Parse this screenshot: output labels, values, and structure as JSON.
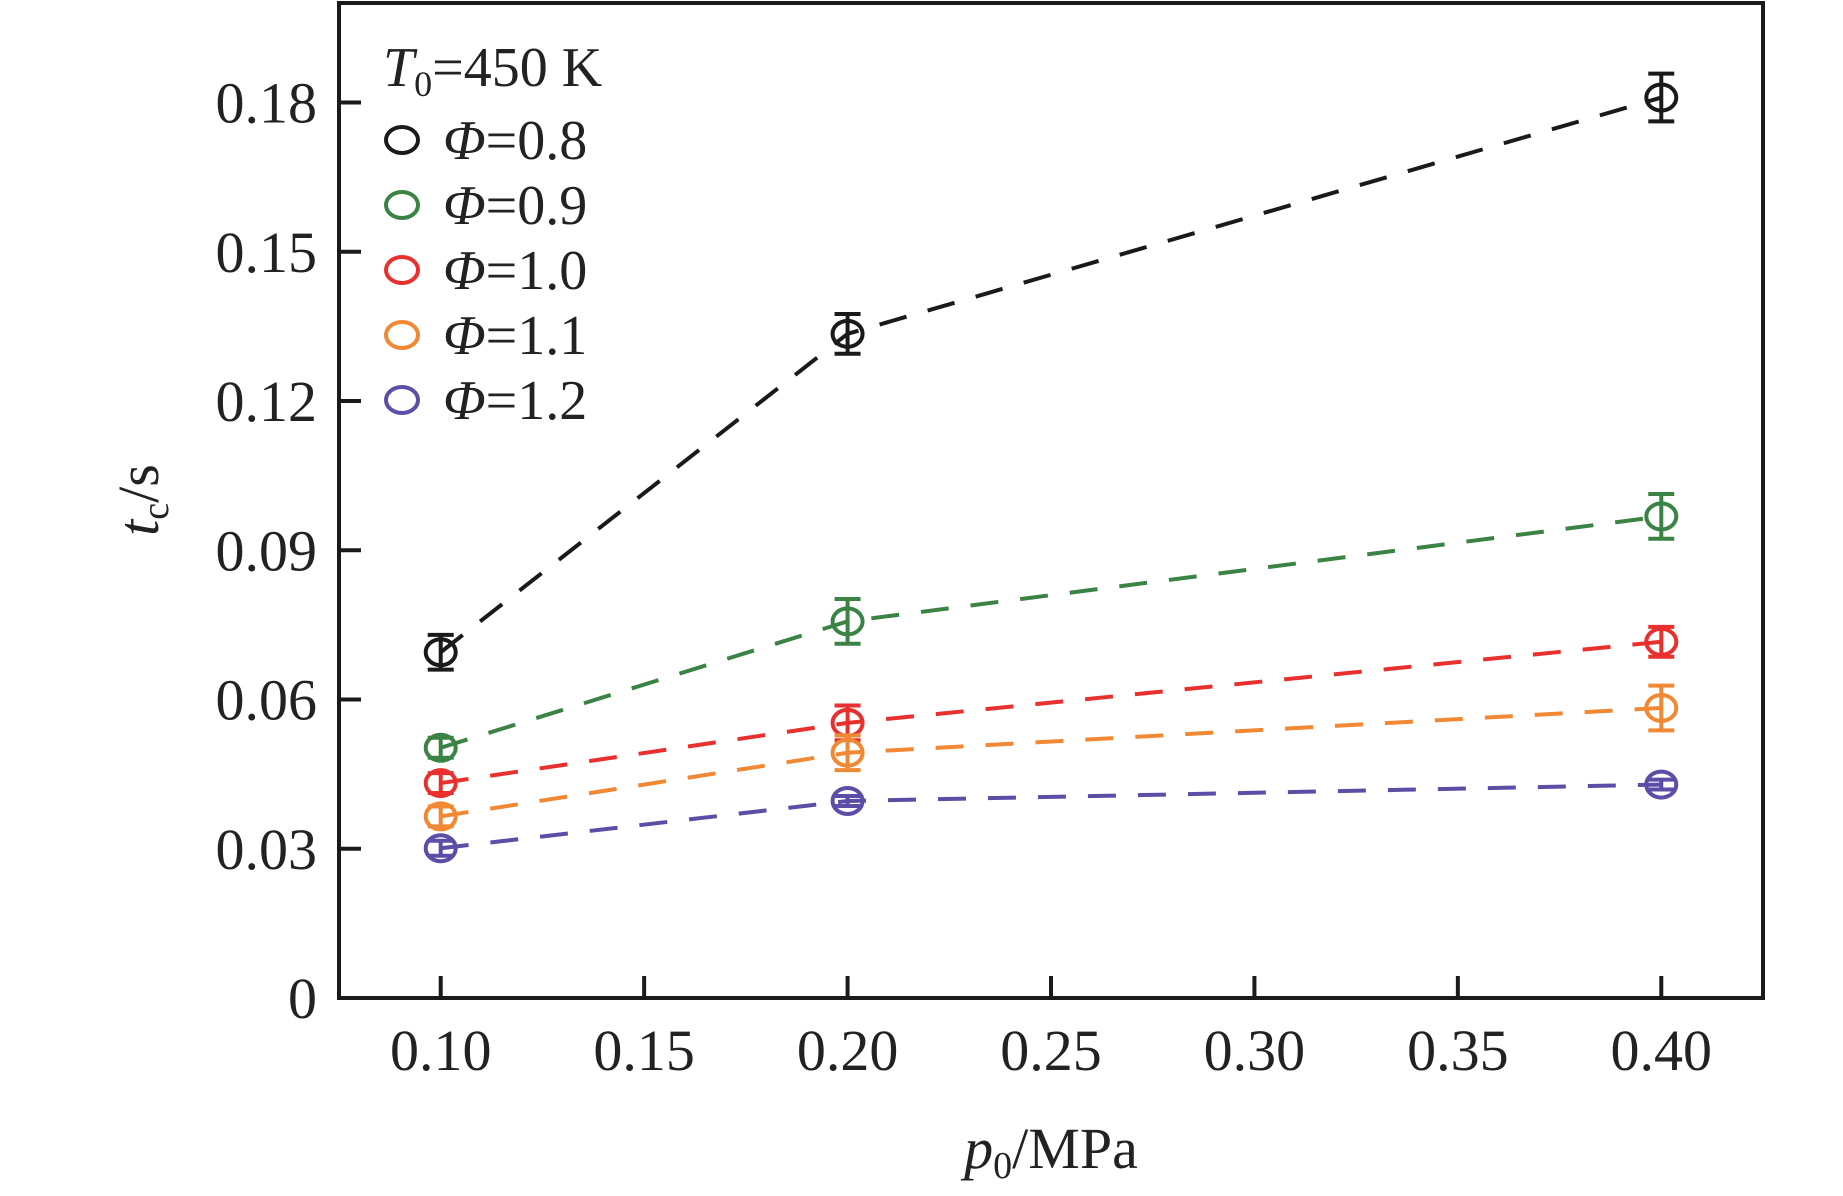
{
  "chart_data": {
    "type": "scatter",
    "title": "",
    "xlabel": "p0/MPa",
    "xlabel_parts": {
      "var": "p",
      "sub": "0",
      "unit": "/MPa"
    },
    "ylabel": "tc/s",
    "ylabel_parts": {
      "var": "t",
      "sub": "c",
      "unit": "/s"
    },
    "xlim": [
      0.075,
      0.425
    ],
    "ylim": [
      0,
      0.2
    ],
    "xticks": [
      0.1,
      0.15,
      0.2,
      0.25,
      0.3,
      0.35,
      0.4
    ],
    "xtick_labels": [
      "0.10",
      "0.15",
      "0.20",
      "0.25",
      "0.30",
      "0.35",
      "0.40"
    ],
    "yticks": [
      0,
      0.03,
      0.06,
      0.09,
      0.12,
      0.15,
      0.18
    ],
    "ytick_labels": [
      "0",
      "0.03",
      "0.06",
      "0.09",
      "0.12",
      "0.15",
      "0.18"
    ],
    "grid": false,
    "legend_placement": "top-left",
    "legend_title": {
      "var": "T",
      "sub": "0",
      "rest": "=450 K"
    },
    "x": [
      0.1,
      0.2,
      0.4
    ],
    "series": [
      {
        "name": "Φ=0.8",
        "label_rest": "=0.8",
        "color": "#1a1a1a",
        "values": [
          0.0695,
          0.1335,
          0.181
        ],
        "errors": [
          0.0035,
          0.004,
          0.0048
        ]
      },
      {
        "name": "Φ=0.9",
        "label_rest": "=0.9",
        "color": "#3a8345",
        "values": [
          0.0503,
          0.0757,
          0.0968
        ],
        "errors": [
          0.002,
          0.0045,
          0.0045
        ]
      },
      {
        "name": "Φ=1.0",
        "label_rest": "=1.0",
        "color": "#e8302e",
        "values": [
          0.0432,
          0.0553,
          0.0716
        ],
        "errors": [
          0.002,
          0.0035,
          0.003
        ]
      },
      {
        "name": "Φ=1.1",
        "label_rest": "=1.1",
        "color": "#f08834",
        "values": [
          0.0365,
          0.0493,
          0.0583
        ],
        "errors": [
          0.002,
          0.0035,
          0.0045
        ]
      },
      {
        "name": "Φ=1.2",
        "label_rest": "=1.2",
        "color": "#5b4ea6",
        "values": [
          0.0301,
          0.0396,
          0.0429
        ],
        "errors": [
          0.0015,
          0.001,
          0.001
        ]
      }
    ]
  }
}
